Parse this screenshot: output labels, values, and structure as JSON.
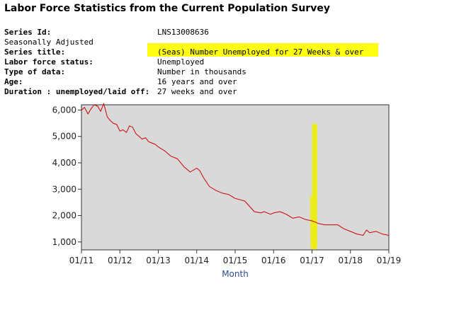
{
  "page": {
    "title": "Labor Force Statistics from the Current Population Survey"
  },
  "meta": {
    "series_id_label": "Series Id:",
    "series_id_value": "LNS13008636",
    "seasonal_label": "Seasonally Adjusted",
    "series_title_label": "Series title:",
    "series_title_value": "(Seas) Number Unemployed for 27 Weeks & over",
    "labor_status_label": "Labor force status:",
    "labor_status_value": "Unemployed",
    "data_type_label": "Type of data:",
    "data_type_value": "Number in thousands",
    "age_label": "Age:",
    "age_value": "16 years and over",
    "duration_label": "Duration : unemployed/laid off:",
    "duration_value": "27 weeks and over"
  },
  "colors": {
    "highlight": "#ffff00",
    "plot_bg": "#d9d9d9",
    "line": "#cc0000",
    "axis_label": "#2a4d8f",
    "marker": "#eeee00"
  },
  "chart_data": {
    "type": "line",
    "title": "",
    "xlabel": "Month",
    "ylabel": "",
    "xlim": [
      2011.0,
      2019.0
    ],
    "ylim": [
      700,
      6200
    ],
    "grid": false,
    "y_ticks": [
      1000,
      2000,
      3000,
      4000,
      5000,
      6000
    ],
    "y_tick_labels": [
      "1,000",
      "2,000",
      "3,000",
      "4,000",
      "5,000",
      "6,000"
    ],
    "x_ticks": [
      2011,
      2012,
      2013,
      2014,
      2015,
      2016,
      2017,
      2018,
      2019
    ],
    "x_tick_labels": [
      "01/11",
      "01/12",
      "01/13",
      "01/14",
      "01/15",
      "01/16",
      "01/17",
      "01/18",
      "01/19"
    ],
    "series": [
      {
        "name": "(Seas) Number Unemployed for 27 Weeks & over",
        "x": [
          2011.0,
          2011.08,
          2011.17,
          2011.25,
          2011.33,
          2011.42,
          2011.5,
          2011.58,
          2011.67,
          2011.75,
          2011.83,
          2011.92,
          2012.0,
          2012.08,
          2012.17,
          2012.25,
          2012.33,
          2012.42,
          2012.5,
          2012.58,
          2012.67,
          2012.75,
          2012.83,
          2012.92,
          2013.0,
          2013.17,
          2013.33,
          2013.5,
          2013.67,
          2013.83,
          2014.0,
          2014.08,
          2014.17,
          2014.33,
          2014.5,
          2014.67,
          2014.83,
          2015.0,
          2015.25,
          2015.5,
          2015.67,
          2015.75,
          2015.92,
          2016.0,
          2016.17,
          2016.33,
          2016.5,
          2016.67,
          2016.83,
          2017.0,
          2017.17,
          2017.33,
          2017.5,
          2017.67,
          2017.83,
          2018.0,
          2018.17,
          2018.33,
          2018.42,
          2018.5,
          2018.67,
          2018.83,
          2019.0
        ],
        "values": [
          6000,
          6100,
          5850,
          6050,
          6200,
          6150,
          5950,
          6250,
          5750,
          5600,
          5500,
          5450,
          5200,
          5250,
          5150,
          5400,
          5350,
          5100,
          5000,
          4900,
          4950,
          4800,
          4750,
          4700,
          4600,
          4450,
          4250,
          4150,
          3850,
          3650,
          3800,
          3700,
          3450,
          3100,
          2950,
          2850,
          2800,
          2650,
          2550,
          2150,
          2100,
          2150,
          2050,
          2100,
          2150,
          2050,
          1900,
          1950,
          1850,
          1800,
          1700,
          1650,
          1650,
          1650,
          1500,
          1400,
          1300,
          1250,
          1450,
          1350,
          1400,
          1300,
          1250
        ]
      }
    ],
    "annotation": {
      "type": "marker-stroke",
      "x": 2017.05,
      "y_range": [
        800,
        5400
      ]
    }
  }
}
